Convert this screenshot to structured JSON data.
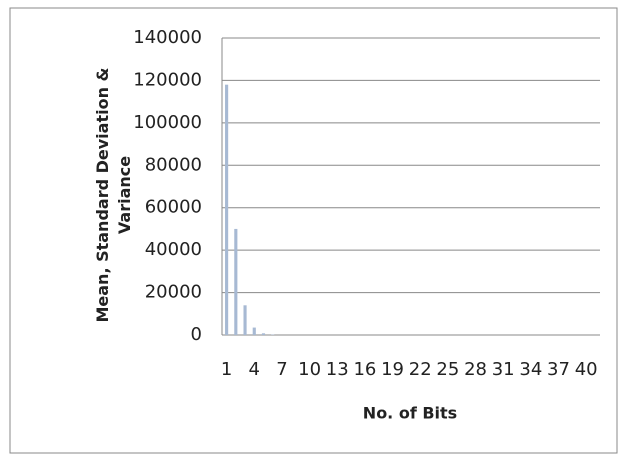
{
  "chart_data": {
    "type": "bar",
    "x_label": "No. of Bits",
    "y_label": "Mean, Standard Deviation & Variance",
    "categories": [
      "1",
      null,
      null,
      "4",
      null,
      null,
      "7",
      null,
      null,
      "10",
      null,
      null,
      "13",
      null,
      null,
      "16",
      null,
      null,
      "19",
      null,
      null,
      "22",
      null,
      null,
      "25",
      null,
      null,
      "28",
      null,
      null,
      "31",
      null,
      null,
      "34",
      null,
      null,
      "37",
      null,
      null,
      "40",
      null
    ],
    "values": [
      118000,
      50000,
      14000,
      3500,
      800,
      200,
      0,
      0,
      0,
      0,
      0,
      0,
      0,
      0,
      0,
      0,
      0,
      0,
      0,
      0,
      0,
      0,
      0,
      0,
      0,
      0,
      0,
      0,
      0,
      0,
      0,
      0,
      0,
      0,
      0,
      0,
      0,
      0,
      0,
      0,
      0
    ],
    "color": "#a7b9d3",
    "ylim": [
      0,
      140000
    ],
    "yticks": [
      0,
      20000,
      40000,
      60000,
      80000,
      100000,
      120000,
      140000
    ],
    "grid": true
  }
}
